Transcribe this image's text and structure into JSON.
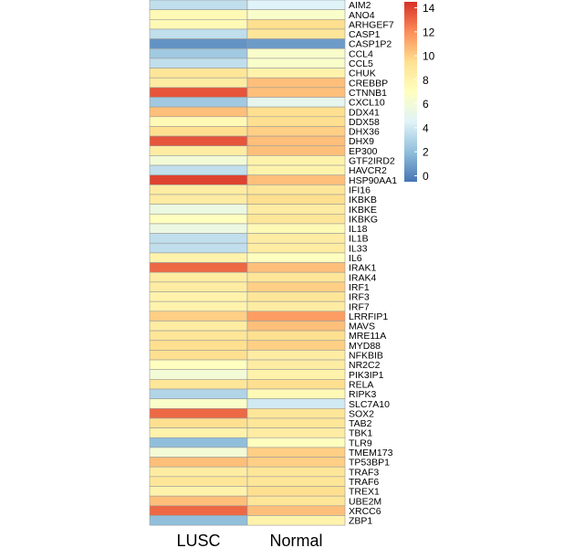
{
  "chart_data": {
    "type": "heatmap",
    "columns": [
      "LUSC",
      "Normal"
    ],
    "rows": [
      "AIM2",
      "ANO4",
      "ARHGEF7",
      "CASP1",
      "CASP1P2",
      "CCL4",
      "CCL5",
      "CHUK",
      "CREBBP",
      "CTNNB1",
      "CXCL10",
      "DDX41",
      "DDX58",
      "DHX36",
      "DHX9",
      "EP300",
      "GTF2IRD2",
      "HAVCR2",
      "HSP90AA1",
      "IFI16",
      "IKBKB",
      "IKBKE",
      "IKBKG",
      "IL18",
      "IL1B",
      "IL33",
      "IL6",
      "IRAK1",
      "IRAK4",
      "IRF1",
      "IRF3",
      "IRF7",
      "LRRFIP1",
      "MAVS",
      "MRE11A",
      "MYD88",
      "NFKBIB",
      "NR2C2",
      "PIK3IP1",
      "RELA",
      "RIPK3",
      "SLC7A10",
      "SOX2",
      "TAB2",
      "TBK1",
      "TLR9",
      "TMEM173",
      "TP53BP1",
      "TRAF3",
      "TRAF6",
      "TREX1",
      "UBE2M",
      "XRCC6",
      "ZBP1"
    ],
    "values": [
      [
        3.5,
        4.5
      ],
      [
        7.5,
        6.5
      ],
      [
        7.5,
        9.5
      ],
      [
        3.5,
        9.0
      ],
      [
        0.5,
        0.8
      ],
      [
        2.5,
        6.5
      ],
      [
        3.5,
        6.5
      ],
      [
        9.0,
        8.0
      ],
      [
        8.5,
        10.5
      ],
      [
        13.5,
        10.5
      ],
      [
        2.5,
        5.0
      ],
      [
        10.5,
        9.5
      ],
      [
        7.5,
        9.5
      ],
      [
        9.5,
        10.0
      ],
      [
        13.5,
        10.5
      ],
      [
        8.5,
        10.5
      ],
      [
        6.0,
        8.0
      ],
      [
        3.5,
        8.0
      ],
      [
        14.0,
        10.5
      ],
      [
        8.5,
        9.0
      ],
      [
        8.5,
        9.5
      ],
      [
        5.5,
        8.5
      ],
      [
        7.0,
        9.0
      ],
      [
        5.5,
        7.5
      ],
      [
        3.5,
        8.5
      ],
      [
        3.5,
        8.5
      ],
      [
        8.0,
        7.0
      ],
      [
        13.0,
        10.5
      ],
      [
        8.5,
        9.0
      ],
      [
        8.5,
        10.0
      ],
      [
        8.0,
        9.0
      ],
      [
        8.0,
        8.5
      ],
      [
        10.0,
        11.5
      ],
      [
        8.5,
        10.5
      ],
      [
        9.0,
        9.5
      ],
      [
        9.5,
        10.0
      ],
      [
        9.5,
        8.5
      ],
      [
        7.0,
        8.5
      ],
      [
        6.0,
        8.0
      ],
      [
        9.0,
        9.5
      ],
      [
        3.0,
        7.5
      ],
      [
        6.5,
        4.0
      ],
      [
        13.0,
        9.0
      ],
      [
        9.5,
        9.0
      ],
      [
        8.0,
        8.5
      ],
      [
        2.0,
        7.0
      ],
      [
        6.0,
        10.0
      ],
      [
        10.5,
        10.0
      ],
      [
        8.5,
        9.0
      ],
      [
        9.0,
        9.0
      ],
      [
        8.0,
        9.5
      ],
      [
        10.5,
        9.0
      ],
      [
        13.0,
        10.5
      ],
      [
        2.0,
        8.0
      ]
    ],
    "colorbar": {
      "ticks": [
        "14",
        "12",
        "10",
        "8",
        "6",
        "4",
        "2",
        "0"
      ],
      "range": [
        -0.5,
        14.5
      ],
      "colors": [
        "#4575B4",
        "#91BFDB",
        "#E0F3F8",
        "#FFFFBF",
        "#FEE090",
        "#FC8D59",
        "#D73027"
      ]
    }
  }
}
